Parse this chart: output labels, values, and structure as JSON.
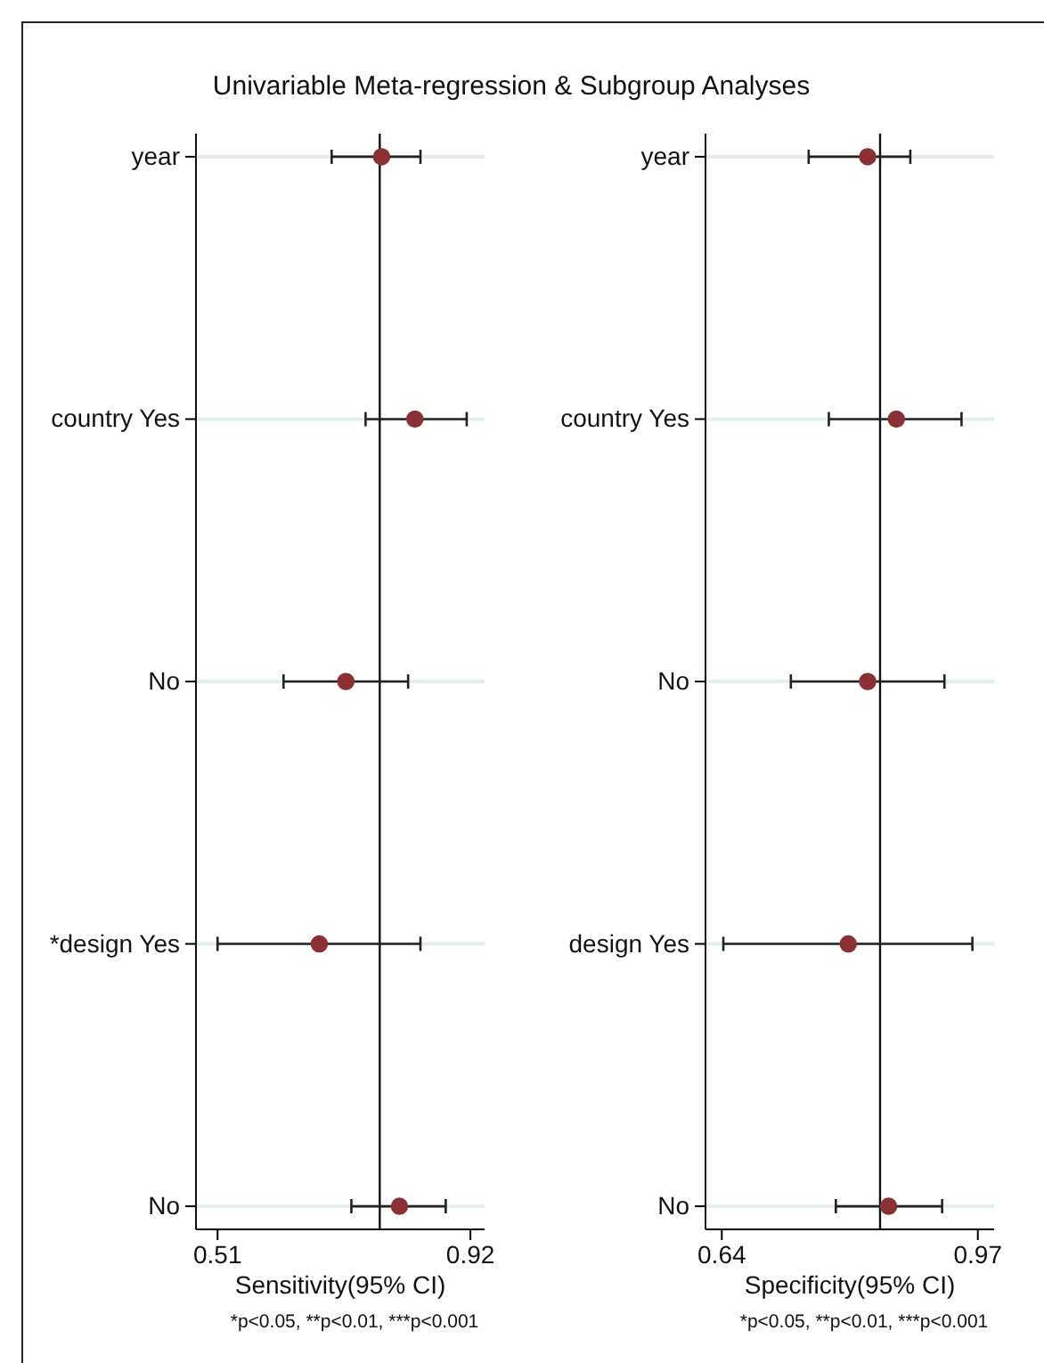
{
  "chart_data": [
    {
      "type": "scatter",
      "orientation": "horizontal",
      "title": "Univariable Meta-regression & Subgroup Analyses",
      "categories": [
        "year",
        "country Yes",
        "No",
        "*design Yes",
        "No"
      ],
      "series": [
        {
          "color": "#8b3035",
          "values": [
            0.776,
            0.83,
            0.718,
            0.675,
            0.805
          ],
          "errors": [
            [
              0.695,
              0.839
            ],
            [
              0.75,
              0.914
            ],
            [
              0.617,
              0.819
            ],
            [
              0.51,
              0.839
            ],
            [
              0.727,
              0.88
            ]
          ]
        }
      ],
      "xlim": [
        0.475,
        0.943
      ],
      "xticks": [
        0.51,
        0.92
      ],
      "xlabel": "Sensitivity(95% CI)",
      "annotations": [
        "*p<0.05, **p<0.01, ***p<0.001"
      ],
      "ref_lines": [
        {
          "axis": "x",
          "value": 0.773
        }
      ],
      "grid": "y",
      "marker": "circle"
    },
    {
      "type": "scatter",
      "orientation": "horizontal",
      "categories": [
        "year",
        "country Yes",
        "No",
        "design Yes",
        "No"
      ],
      "series": [
        {
          "color": "#8b3035",
          "values": [
            0.828,
            0.865,
            0.828,
            0.803,
            0.855
          ],
          "errors": [
            [
              0.752,
              0.883
            ],
            [
              0.778,
              0.949
            ],
            [
              0.729,
              0.927
            ],
            [
              0.642,
              0.963
            ],
            [
              0.787,
              0.924
            ]
          ]
        }
      ],
      "xlim": [
        0.619,
        0.991
      ],
      "xticks": [
        0.64,
        0.97
      ],
      "xlabel": "Specificity(95% CI)",
      "annotations": [
        "*p<0.05, **p<0.01, ***p<0.001"
      ],
      "ref_lines": [
        {
          "axis": "x",
          "value": 0.844
        }
      ],
      "grid": "y",
      "marker": "circle"
    }
  ]
}
